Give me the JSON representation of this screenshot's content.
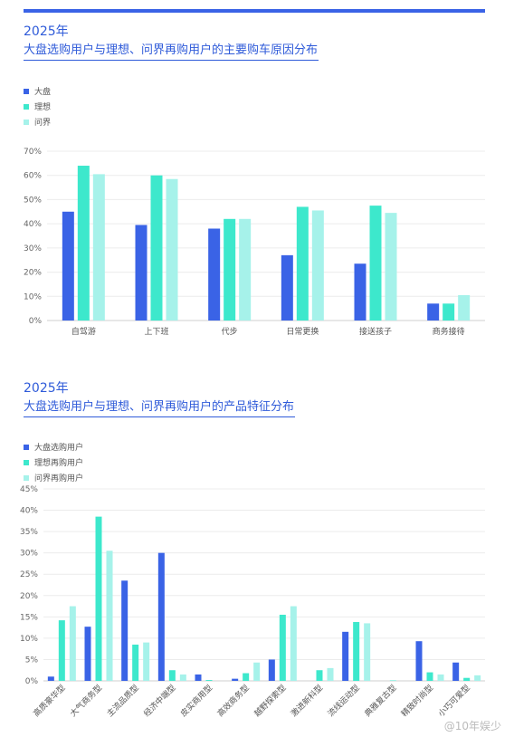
{
  "colors": {
    "dapan": "#3a63e6",
    "lixiang": "#3de8cc",
    "wenjie": "#a6f2ea"
  },
  "watermark": "@10年娱少",
  "charts": {
    "chart1": {
      "year": "2025年",
      "title": "大盘选购用户与理想、问界再购用户的主要购车原因分布",
      "legend": [
        "大盘",
        "理想",
        "问界"
      ]
    },
    "chart2": {
      "year": "2025年",
      "title": "大盘选购用户与理想、问界再购用户的产品特征分布",
      "legend": [
        "大盘选购用户",
        "理想再购用户",
        "问界再购用户"
      ]
    }
  },
  "chart_data": [
    {
      "type": "bar",
      "title": "大盘选购用户与理想、问界再购用户的主要购车原因分布",
      "categories": [
        "自驾游",
        "上下班",
        "代步",
        "日常更换",
        "接送孩子",
        "商务接待"
      ],
      "series": [
        {
          "name": "大盘",
          "values": [
            45,
            39.5,
            38,
            27,
            23.5,
            7
          ]
        },
        {
          "name": "理想",
          "values": [
            64,
            60,
            42,
            47,
            47.5,
            7
          ]
        },
        {
          "name": "问界",
          "values": [
            60.5,
            58.5,
            42,
            45.5,
            44.5,
            10.5
          ]
        }
      ],
      "ylim": [
        0,
        70
      ],
      "yticks": [
        "0%",
        "10%",
        "20%",
        "30%",
        "40%",
        "50%",
        "60%",
        "70%"
      ],
      "grid": true,
      "legend_position": "top-left"
    },
    {
      "type": "bar",
      "title": "大盘选购用户与理想、问界再购用户的产品特征分布",
      "categories": [
        "高质豪华型",
        "大气商务型",
        "主流品质型",
        "经济中端型",
        "皮实商用型",
        "高效商务型",
        "越野探索型",
        "激进新科型",
        "流线运动型",
        "典雅复古型",
        "精致时尚型",
        "小巧可爱型"
      ],
      "series": [
        {
          "name": "大盘选购用户",
          "values": [
            1,
            12.7,
            23.5,
            30,
            1.5,
            0.5,
            5,
            0,
            11.5,
            0,
            9.3,
            4.3
          ]
        },
        {
          "name": "理想再购用户",
          "values": [
            14.2,
            38.5,
            8.5,
            2.5,
            0.2,
            1.8,
            15.5,
            2.5,
            13.8,
            0.1,
            2,
            0.7
          ]
        },
        {
          "name": "问界再购用户",
          "values": [
            17.5,
            30.5,
            9,
            1.5,
            0,
            4.3,
            17.5,
            3,
            13.5,
            0,
            1.5,
            1.3
          ]
        }
      ],
      "ylim": [
        0,
        45
      ],
      "yticks": [
        "0%",
        "5%",
        "10%",
        "15%",
        "20%",
        "25%",
        "30%",
        "35%",
        "40%",
        "45%"
      ],
      "grid": true,
      "legend_position": "top-left"
    }
  ]
}
